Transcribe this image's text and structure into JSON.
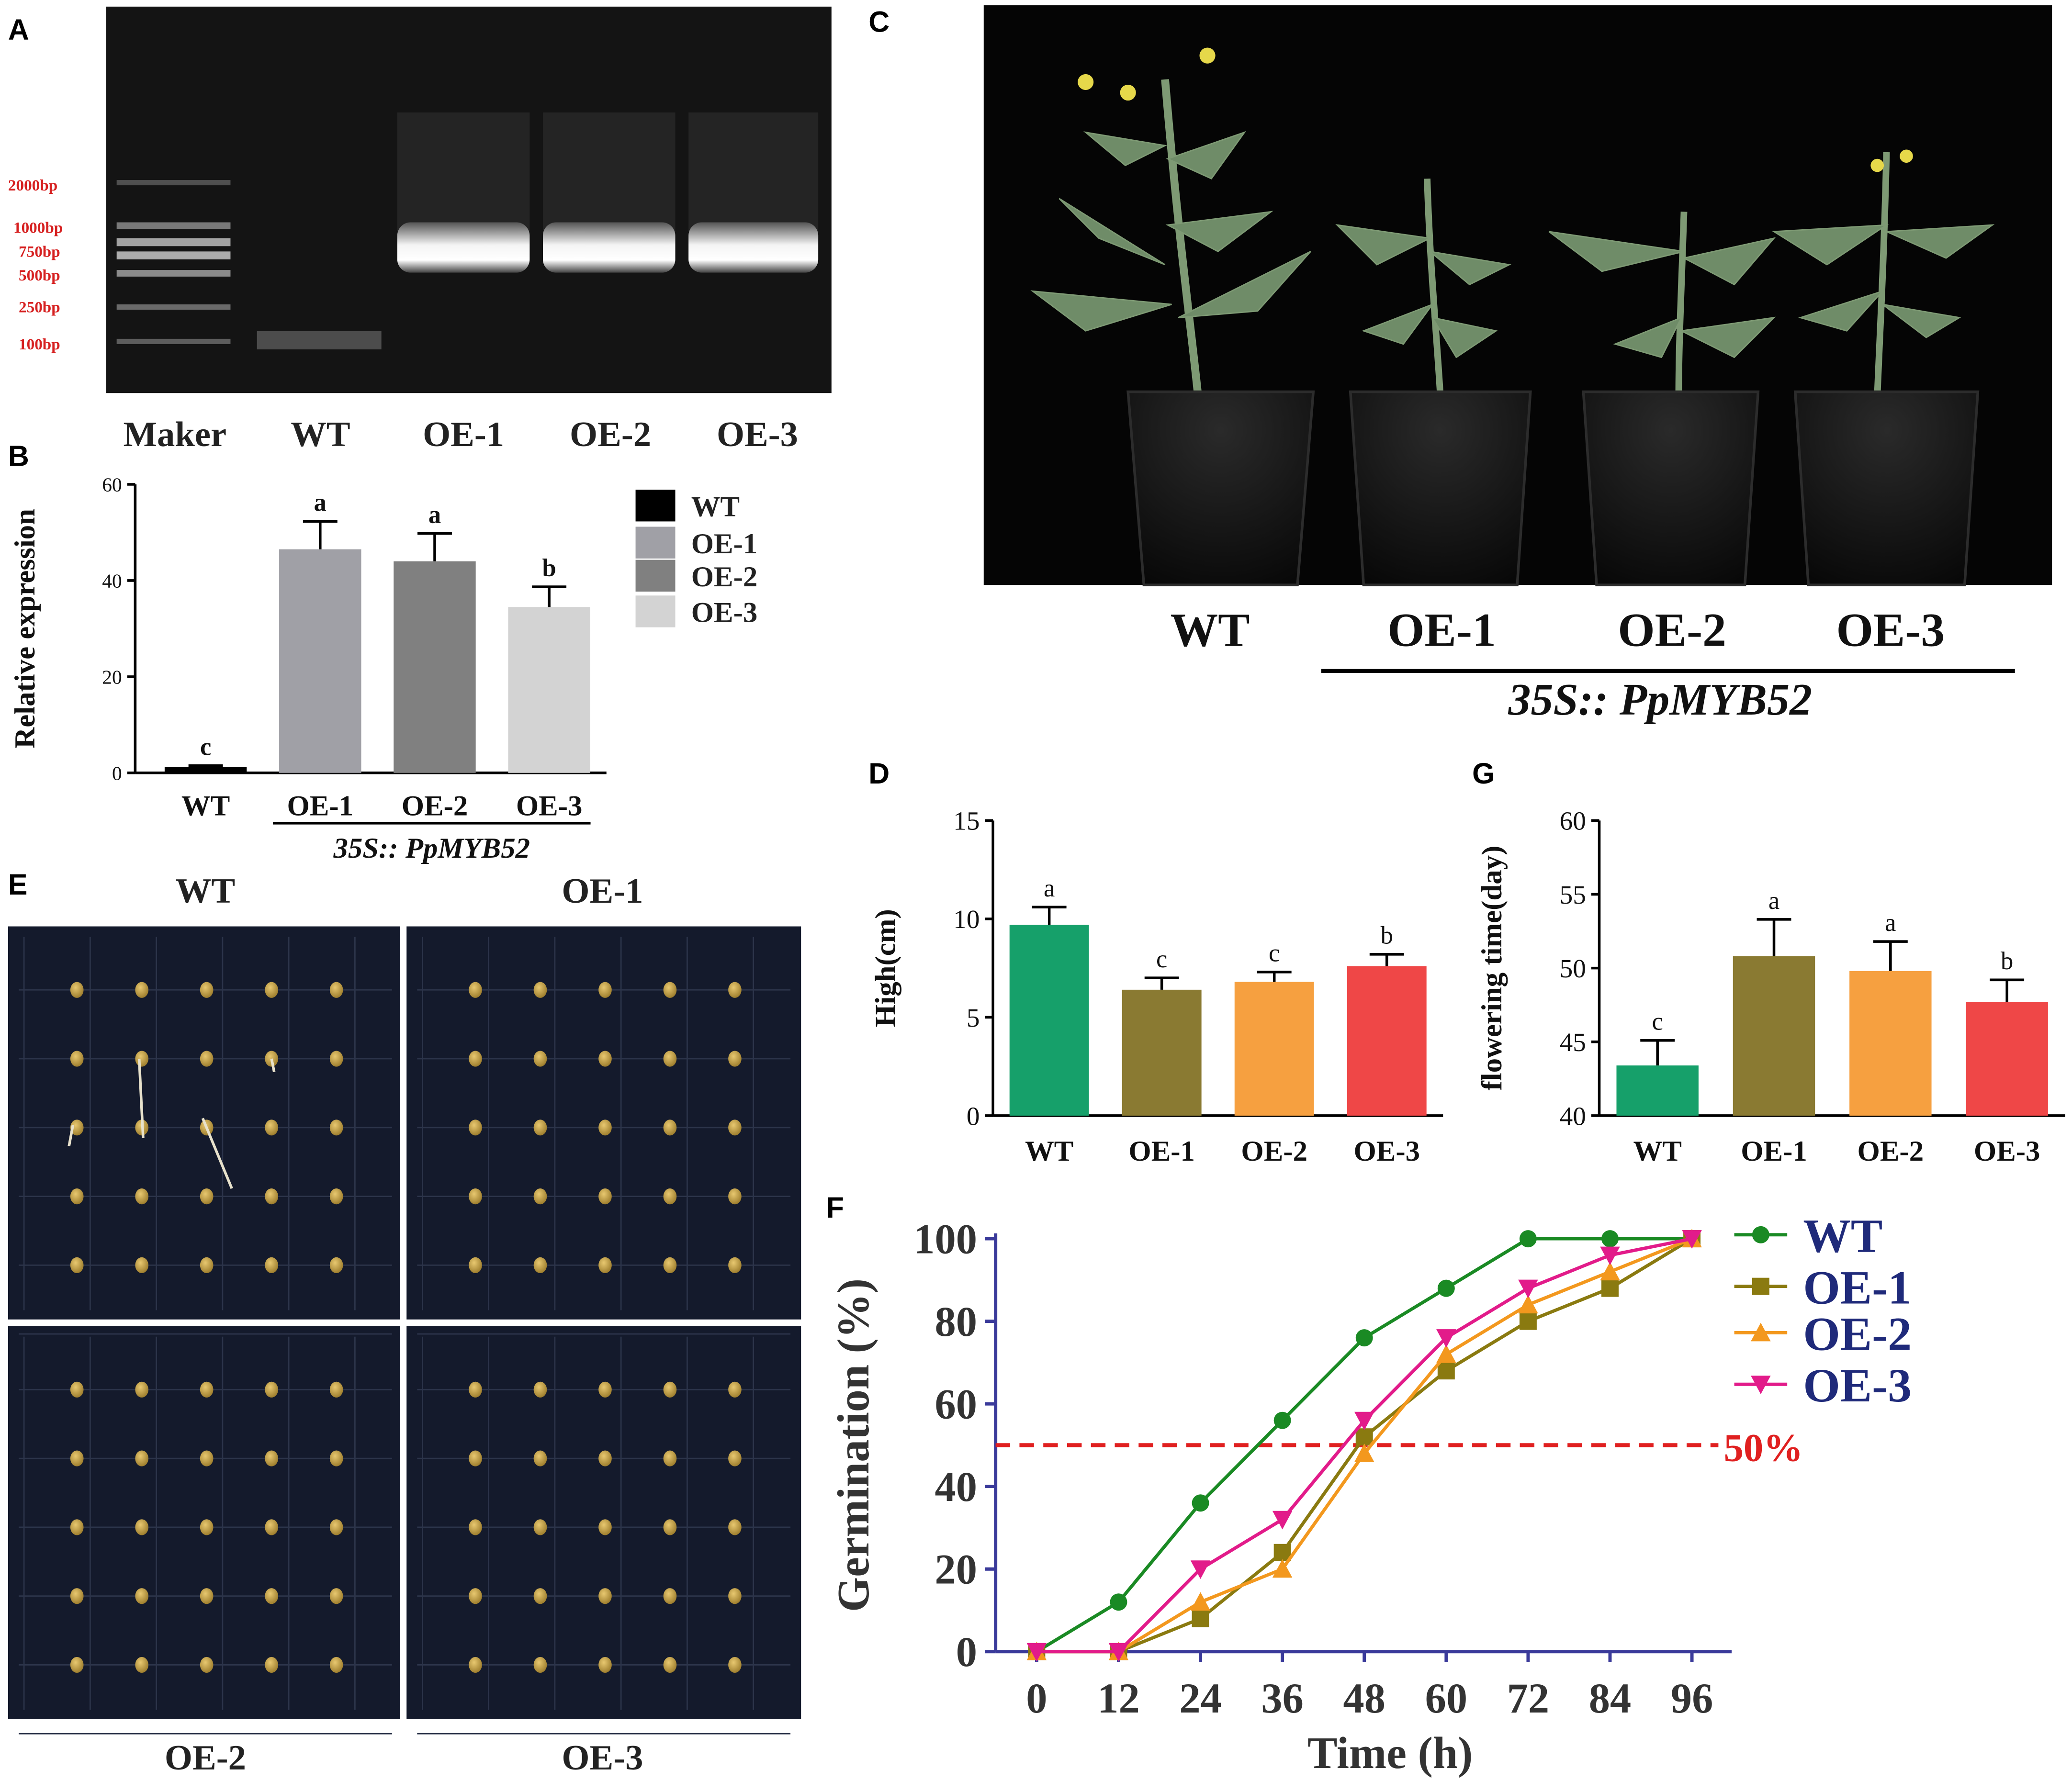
{
  "panel_letters": {
    "A": "A",
    "B": "B",
    "C": "C",
    "D": "D",
    "E": "E",
    "F": "F",
    "G": "G"
  },
  "gel": {
    "markers": [
      "2000bp",
      "1000bp",
      "750bp",
      "500bp",
      "250bp",
      "100bp"
    ],
    "lanes": [
      "Maker",
      "WT",
      "OE-1",
      "OE-2",
      "OE-3"
    ]
  },
  "construct_label": "35S:: PpMYB52",
  "plants": {
    "labels": [
      "WT",
      "OE-1",
      "OE-2",
      "OE-3"
    ]
  },
  "seedlings": {
    "labels": [
      "WT",
      "OE-1",
      "OE-2",
      "OE-3"
    ]
  },
  "reference_line": {
    "value": 50,
    "label": "50%"
  },
  "colors": {
    "B": [
      "#000000",
      "#a0a0a6",
      "#808080",
      "#d3d3d3"
    ],
    "DG": [
      "#16a06a",
      "#8a7a32",
      "#f6a040",
      "#ef4747"
    ],
    "F": [
      "#1a8a24",
      "#8a7a10",
      "#f3981e",
      "#e21b8a"
    ],
    "axis_F": "#3a3a9a",
    "legend_F_text": "#1f2a7a",
    "ref_line": "#e02020"
  },
  "chart_data": [
    {
      "panel": "B",
      "type": "bar",
      "ylabel": "Relative expression",
      "categories": [
        "WT",
        "OE-1",
        "OE-2",
        "OE-3"
      ],
      "values": [
        1.2,
        46.5,
        44,
        34.5
      ],
      "errors": [
        0.3,
        5.8,
        5.8,
        4.2
      ],
      "significance": [
        "c",
        "a",
        "a",
        "b"
      ],
      "ylim": [
        0,
        60
      ],
      "yticks": [
        "0",
        "20",
        "40",
        "60"
      ],
      "legend": [
        "WT",
        "OE-1",
        "OE-2",
        "OE-3"
      ],
      "group_label": "35S:: PpMYB52"
    },
    {
      "panel": "D",
      "type": "bar",
      "ylabel": "High(cm)",
      "categories": [
        "WT",
        "OE-1",
        "OE-2",
        "OE-3"
      ],
      "values": [
        9.7,
        6.4,
        6.8,
        7.6
      ],
      "errors": [
        0.9,
        0.6,
        0.5,
        0.6
      ],
      "significance": [
        "a",
        "c",
        "c",
        "b"
      ],
      "ylim": [
        0,
        15
      ],
      "yticks": [
        "0",
        "5",
        "10",
        "15"
      ]
    },
    {
      "panel": "G",
      "type": "bar",
      "ylabel": "flowering time(day)",
      "categories": [
        "WT",
        "OE-1",
        "OE-2",
        "OE-3"
      ],
      "values": [
        43.4,
        50.8,
        49.8,
        47.7
      ],
      "errors": [
        1.7,
        2.5,
        2.0,
        1.5
      ],
      "significance": [
        "c",
        "a",
        "a",
        "b"
      ],
      "ylim": [
        40,
        60
      ],
      "yticks": [
        "40",
        "45",
        "50",
        "55",
        "60"
      ]
    },
    {
      "panel": "F",
      "type": "line",
      "xlabel": "Time (h)",
      "ylabel": "Germination (%)",
      "x": [
        0,
        12,
        24,
        36,
        48,
        60,
        72,
        84,
        96
      ],
      "ylim": [
        0,
        100
      ],
      "xlim": [
        0,
        96
      ],
      "yticks": [
        "0",
        "20",
        "40",
        "60",
        "80",
        "100"
      ],
      "xticks": [
        "0",
        "12",
        "24",
        "36",
        "48",
        "60",
        "72",
        "84",
        "96"
      ],
      "series": [
        {
          "name": "WT",
          "values": [
            0,
            12,
            36,
            56,
            76,
            88,
            100,
            100,
            100
          ]
        },
        {
          "name": "OE-1",
          "values": [
            0,
            0,
            8,
            24,
            52,
            68,
            80,
            88,
            100
          ]
        },
        {
          "name": "OE-2",
          "values": [
            0,
            0,
            12,
            20,
            48,
            72,
            84,
            92,
            100
          ]
        },
        {
          "name": "OE-3",
          "values": [
            0,
            0,
            20,
            32,
            56,
            76,
            88,
            96,
            100
          ]
        }
      ]
    }
  ]
}
